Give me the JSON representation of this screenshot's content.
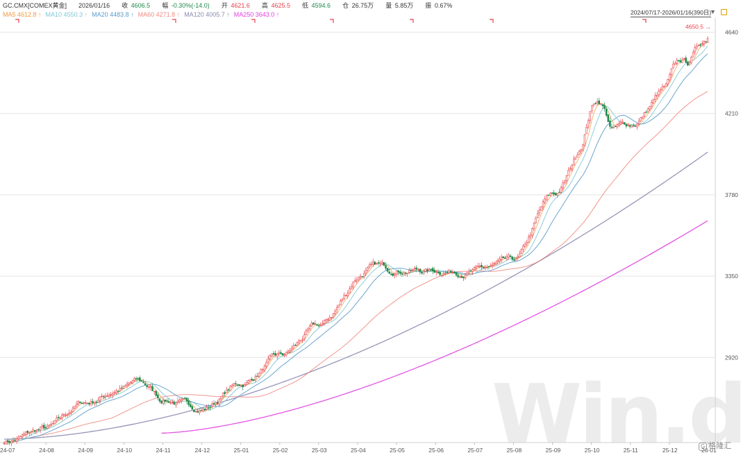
{
  "header": {
    "symbol": "GC.CMX[COMEX黄金]",
    "date": "2026/01/16",
    "close_label": "收",
    "close_value": "4606.5",
    "change_label": "幅",
    "change_value": "-0.30%(-14.0)",
    "open_label": "开",
    "open_value": "4621.6",
    "high_label": "高",
    "high_value": "4625.5",
    "low_label": "低",
    "low_value": "4594.6",
    "volume_label": "仓",
    "volume_value": "26.75万",
    "amount_label": "量",
    "amount_value": "5.85万",
    "amp_label": "振",
    "amp_value": "0.67%"
  },
  "ma_legend": [
    {
      "label": "MA5",
      "value": "4612.8",
      "arrow": "↑",
      "color": "#f29a3a"
    },
    {
      "label": "MA10",
      "value": "4550.3",
      "arrow": "↑",
      "color": "#7fc8d6"
    },
    {
      "label": "MA20",
      "value": "4483.8",
      "arrow": "↑",
      "color": "#5a9ac8"
    },
    {
      "label": "MA60",
      "value": "4271.8",
      "arrow": "↑",
      "color": "#f08a80"
    },
    {
      "label": "MA120",
      "value": "4005.7",
      "arrow": "↑",
      "color": "#8a8ab0"
    },
    {
      "label": "MA250",
      "value": "3643.0",
      "arrow": "↑",
      "color": "#e040e0"
    }
  ],
  "range_text": "2024/07/17-2026/01/16(390日)",
  "watermark": "Win.d",
  "source_logo": "格隆汇",
  "colors": {
    "up": "#e8404a",
    "down": "#1f8a4c",
    "grid": "#e4e4e4",
    "axis_text": "#555555"
  },
  "chart_data": {
    "type": "candlestick",
    "y_ticks": [
      2920,
      3350,
      3780,
      4210,
      4640
    ],
    "ylim": [
      2470,
      4700
    ],
    "x_ticks": [
      "24-07",
      "24-08",
      "24-09",
      "24-10",
      "24-11",
      "24-12",
      "25-01",
      "25-02",
      "25-03",
      "25-04",
      "25-05",
      "25-06",
      "25-07",
      "25-08",
      "25-09",
      "25-10",
      "25-11",
      "25-12",
      "26-01"
    ],
    "highest_annotation": "4650.5",
    "monthly_path": [
      {
        "month": "24-07",
        "close": 2480
      },
      {
        "month": "24-08",
        "close": 2540
      },
      {
        "month": "24-09",
        "close": 2680
      },
      {
        "month": "24-10",
        "close": 2760
      },
      {
        "month": "24-11",
        "close": 2700
      },
      {
        "month": "24-12",
        "close": 2650
      },
      {
        "month": "25-01",
        "close": 2780
      },
      {
        "month": "25-02",
        "close": 2920
      },
      {
        "month": "25-03",
        "close": 3080
      },
      {
        "month": "25-04",
        "close": 3300
      },
      {
        "month": "25-05",
        "close": 3390
      },
      {
        "month": "25-06",
        "close": 3380
      },
      {
        "month": "25-07",
        "close": 3380
      },
      {
        "month": "25-08",
        "close": 3420
      },
      {
        "month": "25-09",
        "close": 3770
      },
      {
        "month": "25-10",
        "close": 4100
      },
      {
        "month": "25-11",
        "close": 4150
      },
      {
        "month": "25-12",
        "close": 4350
      },
      {
        "month": "26-01",
        "close": 4606.5
      }
    ],
    "moving_averages": [
      {
        "name": "MA60",
        "end": 4271.8
      },
      {
        "name": "MA120",
        "end": 4005.7
      },
      {
        "name": "MA250",
        "end": 3643.0
      }
    ]
  }
}
